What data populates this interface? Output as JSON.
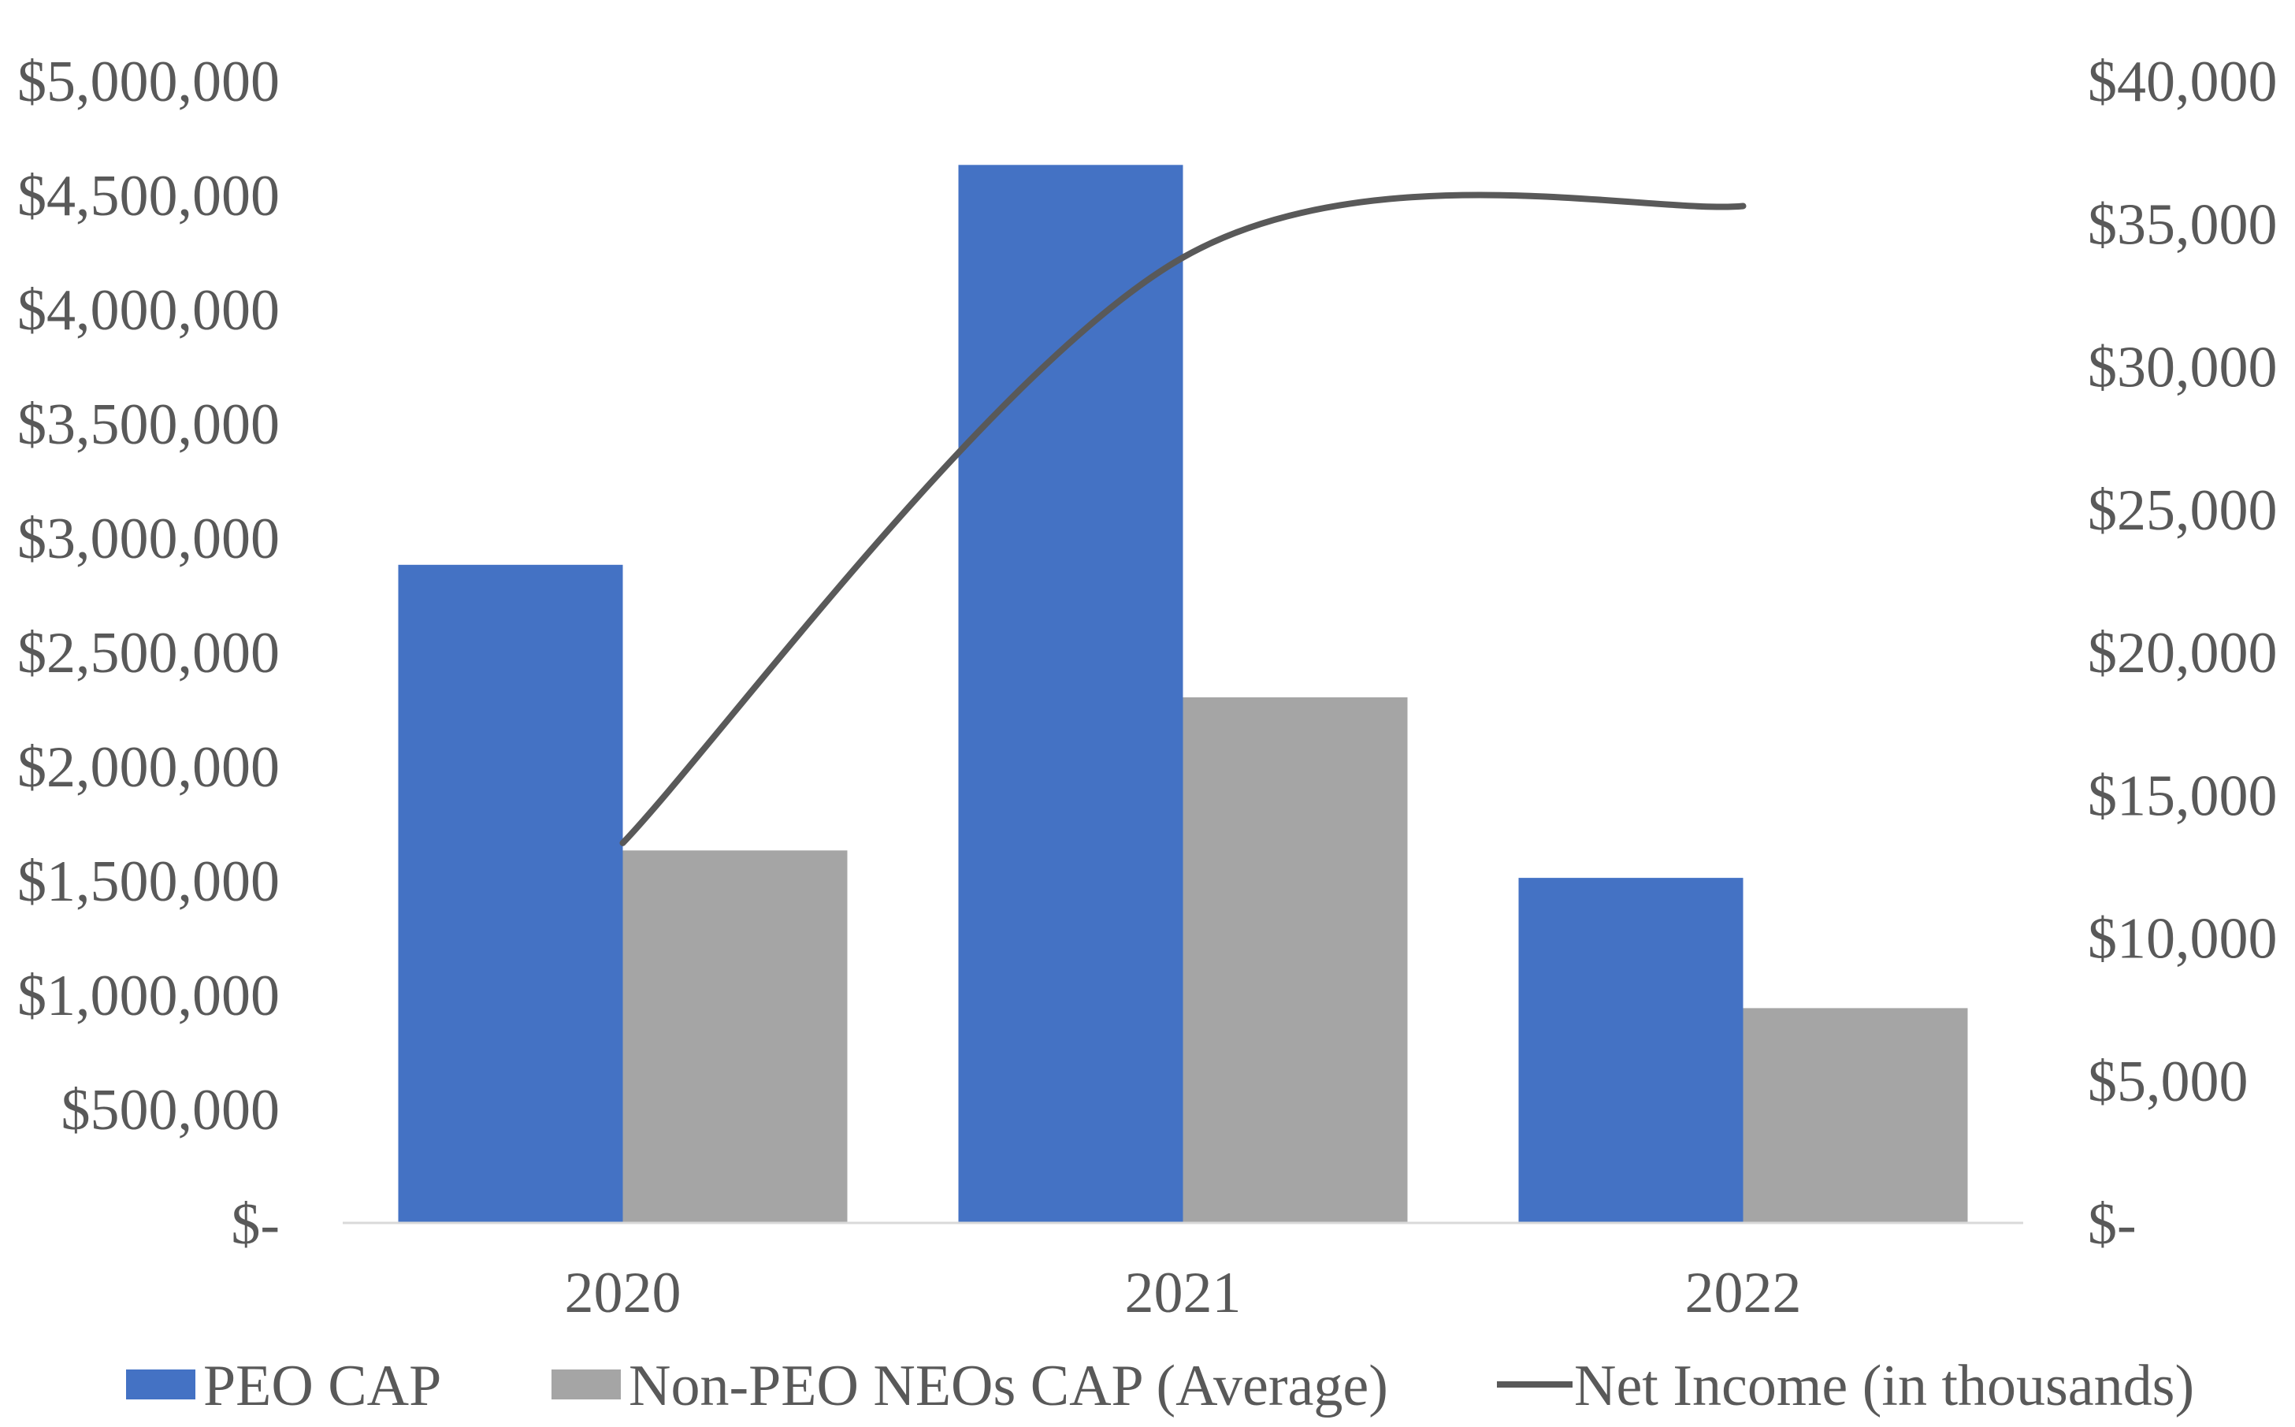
{
  "chart_data": {
    "type": "bar",
    "title": "",
    "categories": [
      "2020",
      "2021",
      "2022"
    ],
    "series": [
      {
        "name": "PEO CAP",
        "type": "bar",
        "axis": "left",
        "color": "#4472C4",
        "values": [
          2880000,
          4630000,
          1510000
        ]
      },
      {
        "name": "Non-PEO NEOs CAP (Average)",
        "type": "bar",
        "axis": "left",
        "color": "#A5A5A5",
        "values": [
          1630000,
          2300000,
          940000
        ]
      },
      {
        "name": "Net Income (in thousands)",
        "type": "line",
        "axis": "right",
        "color": "#595959",
        "values": [
          13300,
          33800,
          35600
        ]
      }
    ],
    "y_left": {
      "label": "",
      "ylim": [
        0,
        5000000
      ],
      "ticks": [
        0,
        500000,
        1000000,
        1500000,
        2000000,
        2500000,
        3000000,
        3500000,
        4000000,
        4500000,
        5000000
      ],
      "tick_labels": [
        "$-",
        "$500,000",
        "$1,000,000",
        "$1,500,000",
        "$2,000,000",
        "$2,500,000",
        "$3,000,000",
        "$3,500,000",
        "$4,000,000",
        "$4,500,000",
        "$5,000,000"
      ]
    },
    "y_right": {
      "label": "",
      "ylim": [
        0,
        40000
      ],
      "ticks": [
        0,
        5000,
        10000,
        15000,
        20000,
        25000,
        30000,
        35000,
        40000
      ],
      "tick_labels": [
        "$-",
        "$5,000",
        "$10,000",
        "$15,000",
        "$20,000",
        "$25,000",
        "$30,000",
        "$35,000",
        "$40,000"
      ]
    },
    "grid": false,
    "legend_position": "bottom"
  }
}
